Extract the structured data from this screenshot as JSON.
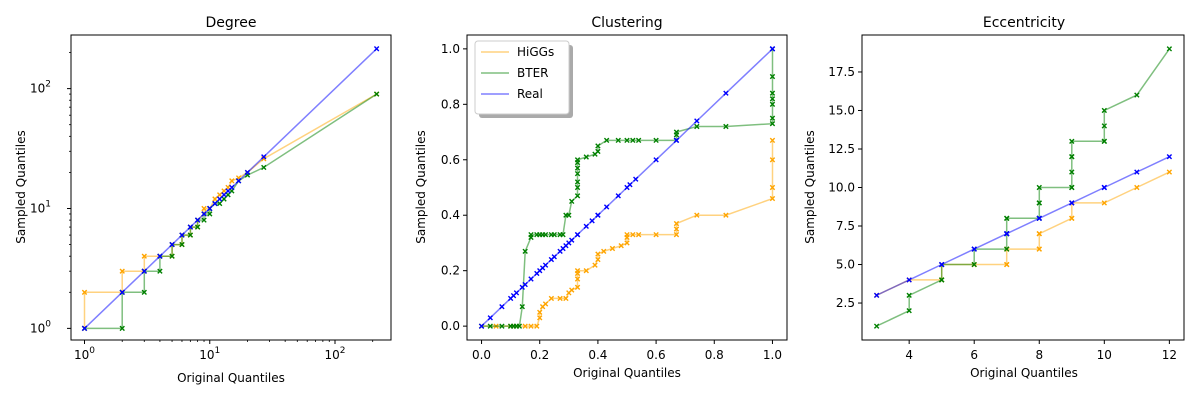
{
  "chart_data": [
    {
      "type": "line",
      "title": "Degree",
      "xlabel": "Original Quantiles",
      "ylabel": "Sampled Quantiles",
      "xscale": "log",
      "yscale": "log",
      "xlim": [
        0.78,
        280
      ],
      "ylim": [
        0.8,
        280
      ],
      "xticks": [
        1,
        10,
        100
      ],
      "yticks": [
        1,
        10,
        100
      ],
      "legend": false,
      "series": [
        {
          "name": "HiGGs",
          "color": "#ffa500",
          "x": [
            1,
            1,
            2,
            2,
            3,
            3,
            4,
            4,
            5,
            5,
            6,
            6,
            7,
            7,
            8,
            8,
            9,
            9,
            10,
            11,
            12,
            13,
            14,
            15,
            17,
            20,
            27,
            215
          ],
          "y": [
            1,
            2,
            2,
            3,
            3,
            4,
            4,
            4,
            4,
            5,
            5,
            6,
            6,
            7,
            7,
            8,
            9,
            10,
            10,
            12,
            13,
            14,
            15,
            17,
            18,
            20,
            26,
            90
          ]
        },
        {
          "name": "BTER",
          "color": "#008000",
          "x": [
            1,
            2,
            2,
            3,
            3,
            4,
            4,
            5,
            5,
            6,
            6,
            7,
            7,
            8,
            8,
            9,
            9,
            10,
            10,
            11,
            12,
            13,
            14,
            15,
            17,
            20,
            27,
            215
          ],
          "y": [
            1,
            1,
            2,
            2,
            3,
            3,
            4,
            4,
            5,
            5,
            6,
            6,
            7,
            7,
            8,
            8,
            9,
            9,
            10,
            11,
            11,
            12,
            13,
            14,
            17,
            19,
            22,
            90
          ]
        },
        {
          "name": "Real",
          "color": "#0000ff",
          "x": [
            1,
            2,
            3,
            4,
            5,
            6,
            7,
            8,
            9,
            10,
            11,
            12,
            13,
            14,
            15,
            17,
            20,
            27,
            215
          ],
          "y": [
            1,
            2,
            3,
            4,
            5,
            6,
            7,
            8,
            9,
            10,
            11,
            12,
            13,
            14,
            15,
            17,
            20,
            27,
            215
          ]
        }
      ]
    },
    {
      "type": "line",
      "title": "Clustering",
      "xlabel": "Original Quantiles",
      "ylabel": "Sampled Quantiles",
      "xlim": [
        -0.05,
        1.05
      ],
      "ylim": [
        -0.05,
        1.05
      ],
      "xticks": [
        0.0,
        0.2,
        0.4,
        0.6,
        0.8,
        1.0
      ],
      "yticks": [
        0.0,
        0.2,
        0.4,
        0.6,
        0.8,
        1.0
      ],
      "legend": true,
      "legend_position": "upper-left",
      "series": [
        {
          "name": "HiGGs",
          "color": "#ffa500",
          "x": [
            0,
            0.05,
            0.1,
            0.12,
            0.15,
            0.17,
            0.19,
            0.2,
            0.2,
            0.21,
            0.22,
            0.24,
            0.27,
            0.29,
            0.3,
            0.31,
            0.33,
            0.33,
            0.33,
            0.33,
            0.36,
            0.39,
            0.4,
            0.4,
            0.42,
            0.45,
            0.48,
            0.5,
            0.5,
            0.5,
            0.52,
            0.54,
            0.6,
            0.67,
            0.67,
            0.67,
            0.74,
            0.84,
            1.0,
            1.0,
            1.0,
            1.0
          ],
          "y": [
            0,
            0,
            0,
            0,
            0,
            0,
            0,
            0.03,
            0.05,
            0.07,
            0.08,
            0.1,
            0.1,
            0.1,
            0.12,
            0.13,
            0.14,
            0.17,
            0.19,
            0.2,
            0.2,
            0.22,
            0.24,
            0.26,
            0.27,
            0.28,
            0.29,
            0.3,
            0.32,
            0.33,
            0.33,
            0.33,
            0.33,
            0.33,
            0.35,
            0.37,
            0.4,
            0.4,
            0.46,
            0.5,
            0.6,
            0.67
          ]
        },
        {
          "name": "BTER",
          "color": "#008000",
          "x": [
            0,
            0.03,
            0.07,
            0.1,
            0.11,
            0.12,
            0.13,
            0.14,
            0.15,
            0.17,
            0.17,
            0.19,
            0.2,
            0.21,
            0.22,
            0.24,
            0.25,
            0.27,
            0.28,
            0.29,
            0.3,
            0.31,
            0.33,
            0.33,
            0.33,
            0.33,
            0.33,
            0.33,
            0.33,
            0.36,
            0.39,
            0.4,
            0.4,
            0.43,
            0.47,
            0.5,
            0.52,
            0.54,
            0.6,
            0.67,
            0.67,
            0.67,
            0.74,
            0.84,
            1.0,
            1.0,
            1.0,
            1.0,
            1.0,
            1.0,
            1.0
          ],
          "y": [
            0,
            0,
            0,
            0,
            0,
            0,
            0,
            0.07,
            0.27,
            0.32,
            0.33,
            0.33,
            0.33,
            0.33,
            0.33,
            0.33,
            0.33,
            0.33,
            0.33,
            0.4,
            0.4,
            0.45,
            0.47,
            0.5,
            0.52,
            0.55,
            0.57,
            0.59,
            0.6,
            0.61,
            0.62,
            0.63,
            0.65,
            0.67,
            0.67,
            0.67,
            0.67,
            0.67,
            0.67,
            0.67,
            0.69,
            0.7,
            0.72,
            0.72,
            0.73,
            0.75,
            0.8,
            0.82,
            0.84,
            0.9,
            1.0
          ]
        },
        {
          "name": "Real",
          "color": "#0000ff",
          "x": [
            0,
            0.03,
            0.07,
            0.1,
            0.11,
            0.12,
            0.14,
            0.15,
            0.17,
            0.19,
            0.2,
            0.21,
            0.22,
            0.24,
            0.25,
            0.27,
            0.28,
            0.29,
            0.3,
            0.31,
            0.33,
            0.33,
            0.36,
            0.38,
            0.4,
            0.4,
            0.43,
            0.47,
            0.5,
            0.51,
            0.53,
            0.6,
            0.67,
            0.67,
            0.74,
            0.84,
            1.0,
            1.0
          ],
          "y": [
            0,
            0.03,
            0.07,
            0.1,
            0.11,
            0.12,
            0.14,
            0.15,
            0.17,
            0.19,
            0.2,
            0.21,
            0.22,
            0.24,
            0.25,
            0.27,
            0.28,
            0.29,
            0.3,
            0.31,
            0.33,
            0.33,
            0.36,
            0.38,
            0.4,
            0.4,
            0.43,
            0.47,
            0.5,
            0.51,
            0.53,
            0.6,
            0.67,
            0.67,
            0.74,
            0.84,
            1.0,
            1.0
          ]
        }
      ]
    },
    {
      "type": "line",
      "title": "Eccentricity",
      "xlabel": "Original Quantiles",
      "ylabel": "Sampled Quantiles",
      "xlim": [
        2.55,
        12.45
      ],
      "ylim": [
        0.1,
        19.9
      ],
      "xticks": [
        4,
        6,
        8,
        10,
        12
      ],
      "yticks": [
        2.5,
        5.0,
        7.5,
        10.0,
        12.5,
        15.0,
        17.5
      ],
      "ytick_labels": [
        "2.5",
        "5.0",
        "7.5",
        "10.0",
        "12.5",
        "15.0",
        "17.5"
      ],
      "legend": false,
      "series": [
        {
          "name": "HiGGs",
          "color": "#ffa500",
          "x": [
            3,
            4,
            5,
            5,
            5,
            6,
            6,
            7,
            7,
            7,
            7,
            8,
            8,
            8,
            8,
            9,
            9,
            9,
            10,
            11,
            12
          ],
          "y": [
            3,
            4,
            4,
            4,
            5,
            5,
            5,
            5,
            5,
            6,
            6,
            6,
            6,
            7,
            7,
            8,
            8,
            9,
            9,
            10,
            11
          ]
        },
        {
          "name": "BTER",
          "color": "#008000",
          "x": [
            3,
            4,
            4,
            5,
            5,
            5,
            6,
            6,
            7,
            7,
            7,
            7,
            7,
            8,
            8,
            8,
            8,
            8,
            9,
            9,
            9,
            9,
            9,
            9,
            10,
            10,
            10,
            10,
            11,
            12
          ],
          "y": [
            1,
            2,
            3,
            4,
            4,
            5,
            5,
            6,
            6,
            7,
            7,
            8,
            8,
            8,
            8,
            9,
            9,
            10,
            10,
            10,
            11,
            12,
            12,
            13,
            13,
            13,
            14,
            15,
            16,
            19
          ]
        },
        {
          "name": "Real",
          "color": "#0000ff",
          "x": [
            3,
            4,
            5,
            5,
            6,
            6,
            7,
            7,
            7,
            8,
            8,
            9,
            9,
            10,
            10,
            11,
            12
          ],
          "y": [
            3,
            4,
            5,
            5,
            6,
            6,
            7,
            7,
            7,
            8,
            8,
            9,
            9,
            10,
            10,
            11,
            12
          ]
        }
      ]
    }
  ]
}
